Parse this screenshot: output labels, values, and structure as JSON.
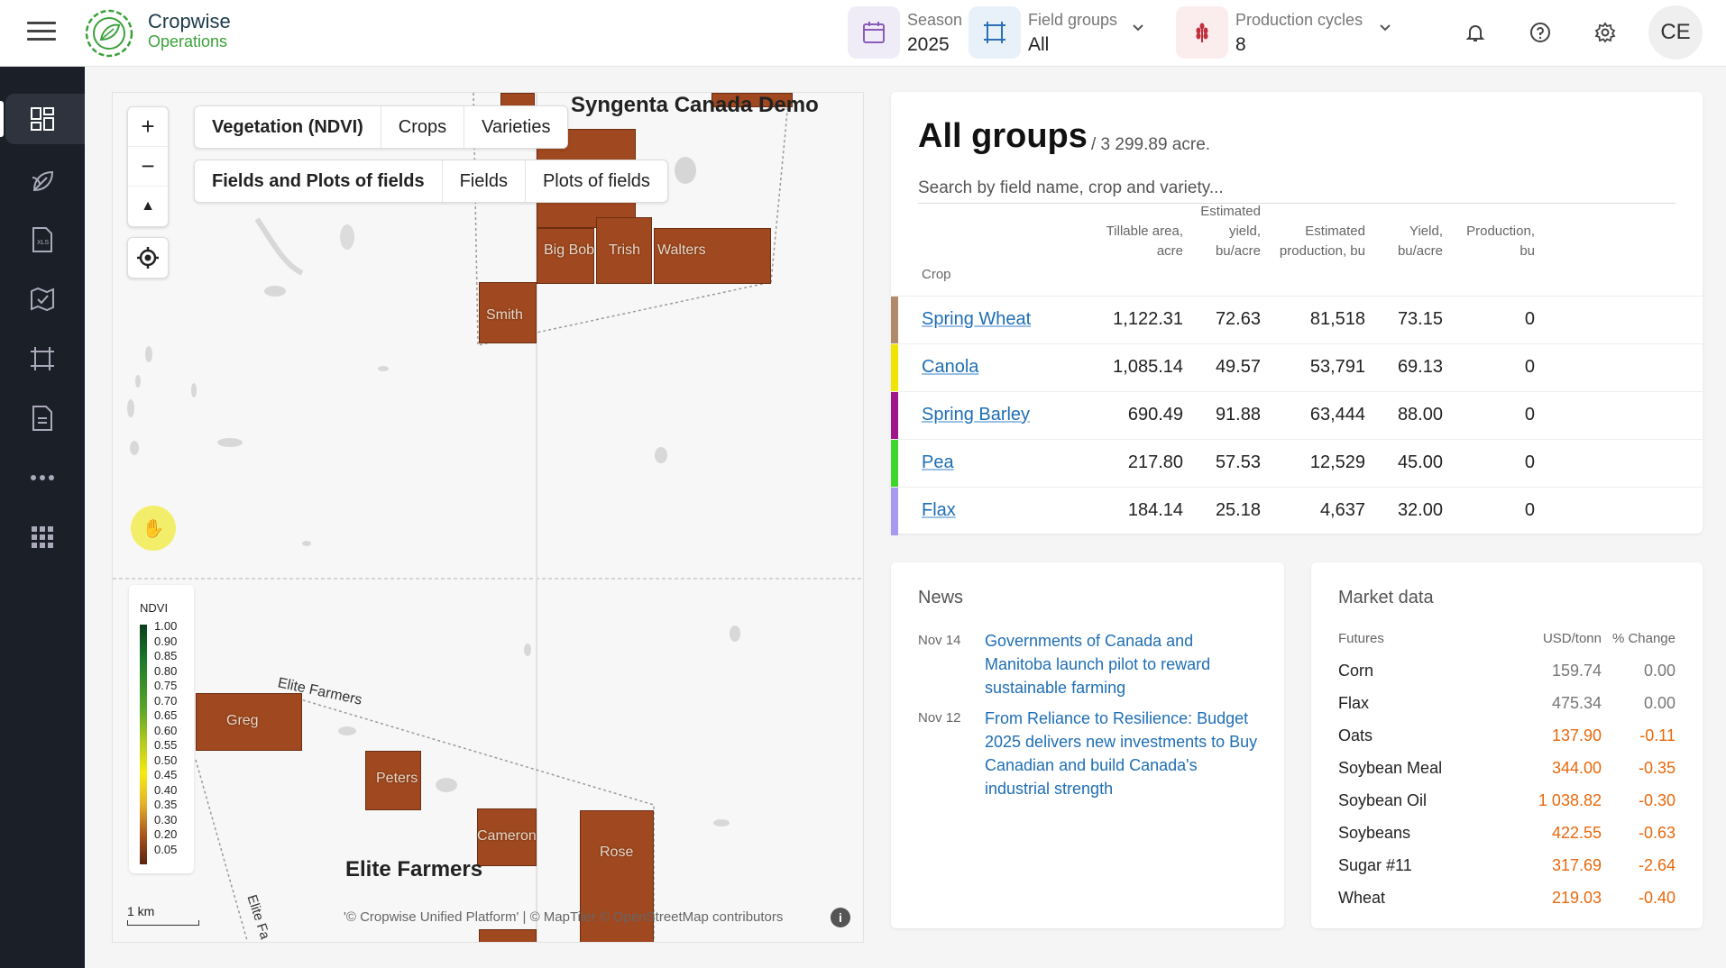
{
  "header": {
    "logo_line1": "Cropwise",
    "logo_line2": "Operations",
    "season_label": "Season",
    "season_value": "2025",
    "field_groups_label": "Field groups",
    "field_groups_value": "All",
    "production_cycles_label": "Production cycles",
    "production_cycles_value": "8",
    "avatar_initials": "CE"
  },
  "map": {
    "layer_tabs": [
      "Vegetation (NDVI)",
      "Crops",
      "Varieties"
    ],
    "view_tabs": [
      "Fields and Plots of fields",
      "Fields",
      "Plots of fields"
    ],
    "zoom_in": "+",
    "zoom_out": "−",
    "compass": "▲",
    "farm_names": [
      "Syngenta Canada Demo",
      "Elite Farmers"
    ],
    "road_labels": [
      "Elite Farmers",
      "Elite Fa"
    ],
    "field_labels": [
      "Big Bob",
      "Trish",
      "Walters",
      "Smith",
      "Greg",
      "Peters",
      "Cameron",
      "Rose"
    ],
    "legend_title": "NDVI",
    "legend_values": [
      "1.00",
      "0.90",
      "0.85",
      "0.80",
      "0.75",
      "0.70",
      "0.65",
      "0.60",
      "0.55",
      "0.50",
      "0.45",
      "0.40",
      "0.35",
      "0.30",
      "0.20",
      "0.05"
    ],
    "scale": "1 km",
    "attribution": "'© Cropwise Unified Platform' | © MapTiler © OpenStreetMap contributors",
    "info": "i"
  },
  "groups": {
    "title": "All groups",
    "subtitle": "/ 3 299.89 acre.",
    "search_placeholder": "Search by field name, crop and variety...",
    "columns": {
      "crop": "Crop",
      "tillable": [
        "Tillable area,",
        "acre"
      ],
      "est_yield": [
        "Estimated",
        "yield,",
        "bu/acre"
      ],
      "est_prod": [
        "Estimated",
        "production, bu"
      ],
      "yield": [
        "Yield,",
        "bu/acre"
      ],
      "production": [
        "Production,",
        "bu"
      ]
    },
    "rows": [
      {
        "crop": "Spring Wheat",
        "color": "#b08a6a",
        "tillable": "1,122.31",
        "est_yield": "72.63",
        "est_prod": "81,518",
        "yield": "73.15",
        "production": "0"
      },
      {
        "crop": "Canola",
        "color": "#f1e400",
        "tillable": "1,085.14",
        "est_yield": "49.57",
        "est_prod": "53,791",
        "yield": "69.13",
        "production": "0"
      },
      {
        "crop": "Spring Barley",
        "color": "#a0158c",
        "tillable": "690.49",
        "est_yield": "91.88",
        "est_prod": "63,444",
        "yield": "88.00",
        "production": "0"
      },
      {
        "crop": "Pea",
        "color": "#3ed62a",
        "tillable": "217.80",
        "est_yield": "57.53",
        "est_prod": "12,529",
        "yield": "45.00",
        "production": "0"
      },
      {
        "crop": "Flax",
        "color": "#a89af0",
        "tillable": "184.14",
        "est_yield": "25.18",
        "est_prod": "4,637",
        "yield": "32.00",
        "production": "0"
      }
    ]
  },
  "news": {
    "title": "News",
    "items": [
      {
        "date": "Nov 14",
        "headline": "Governments of Canada and Manitoba launch pilot to reward sustainable farming"
      },
      {
        "date": "Nov 12",
        "headline": "From Reliance to Resilience: Budget 2025 delivers new investments to Buy Canadian and build Canada's industrial strength"
      }
    ]
  },
  "market": {
    "title": "Market data",
    "col_futures": "Futures",
    "col_price": "USD/tonn",
    "col_change": "% Change",
    "rows": [
      {
        "name": "Corn",
        "price": "159.74",
        "change": "0.00",
        "trend": "flat"
      },
      {
        "name": "Flax",
        "price": "475.34",
        "change": "0.00",
        "trend": "flat"
      },
      {
        "name": "Oats",
        "price": "137.90",
        "change": "-0.11",
        "trend": "down"
      },
      {
        "name": "Soybean Meal",
        "price": "344.00",
        "change": "-0.35",
        "trend": "down"
      },
      {
        "name": "Soybean Oil",
        "price": "1 038.82",
        "change": "-0.30",
        "trend": "down"
      },
      {
        "name": "Soybeans",
        "price": "422.55",
        "change": "-0.63",
        "trend": "down"
      },
      {
        "name": "Sugar #11",
        "price": "317.69",
        "change": "-2.64",
        "trend": "down"
      },
      {
        "name": "Wheat",
        "price": "219.03",
        "change": "-0.40",
        "trend": "down"
      }
    ],
    "colors": {
      "flat": "#777777",
      "down": "#e8680c"
    }
  },
  "sidebar": {
    "icons": [
      "dashboard-icon",
      "crops-icon",
      "xls-report-icon",
      "map-task-icon",
      "field-boundary-icon",
      "document-icon",
      "more-icon",
      "apps-grid-icon"
    ],
    "add": "+"
  }
}
